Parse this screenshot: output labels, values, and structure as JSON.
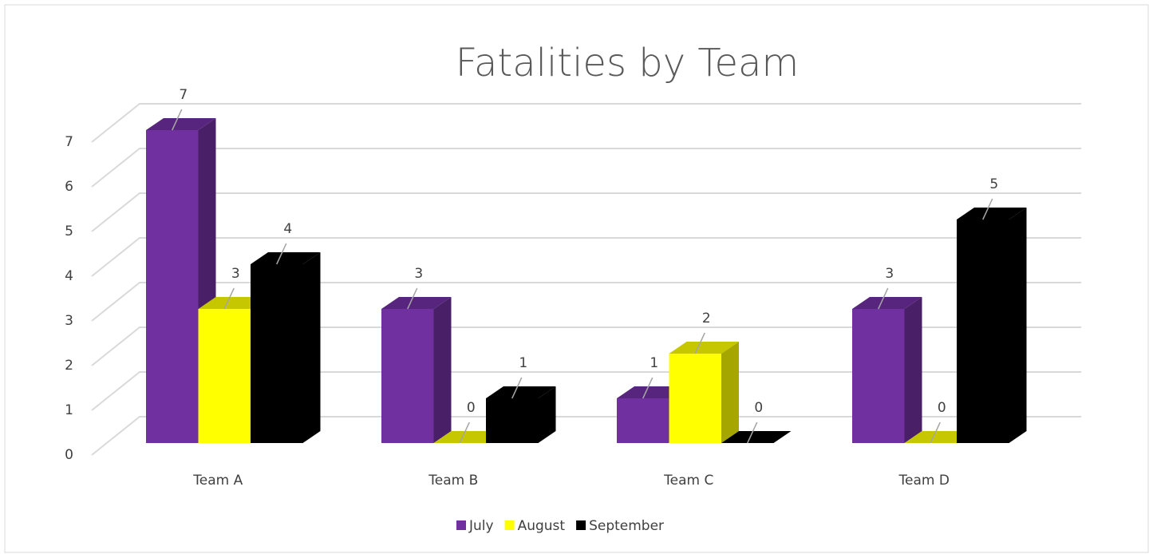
{
  "chart_data": {
    "type": "bar3d",
    "title": "Fatalities by Team",
    "categories": [
      "Team A",
      "Team B",
      "Team C",
      "Team D"
    ],
    "series": [
      {
        "name": "July",
        "color": "#7030a0",
        "values": [
          7,
          3,
          1,
          3
        ]
      },
      {
        "name": "August",
        "color": "#ffff00",
        "values": [
          3,
          0,
          2,
          0
        ]
      },
      {
        "name": "September",
        "color": "#000000",
        "values": [
          4,
          1,
          0,
          5
        ]
      }
    ],
    "ylim": [
      0,
      7
    ],
    "yticks": [
      0,
      1,
      2,
      3,
      4,
      5,
      6,
      7
    ],
    "grid": true,
    "legend": "bottom"
  }
}
